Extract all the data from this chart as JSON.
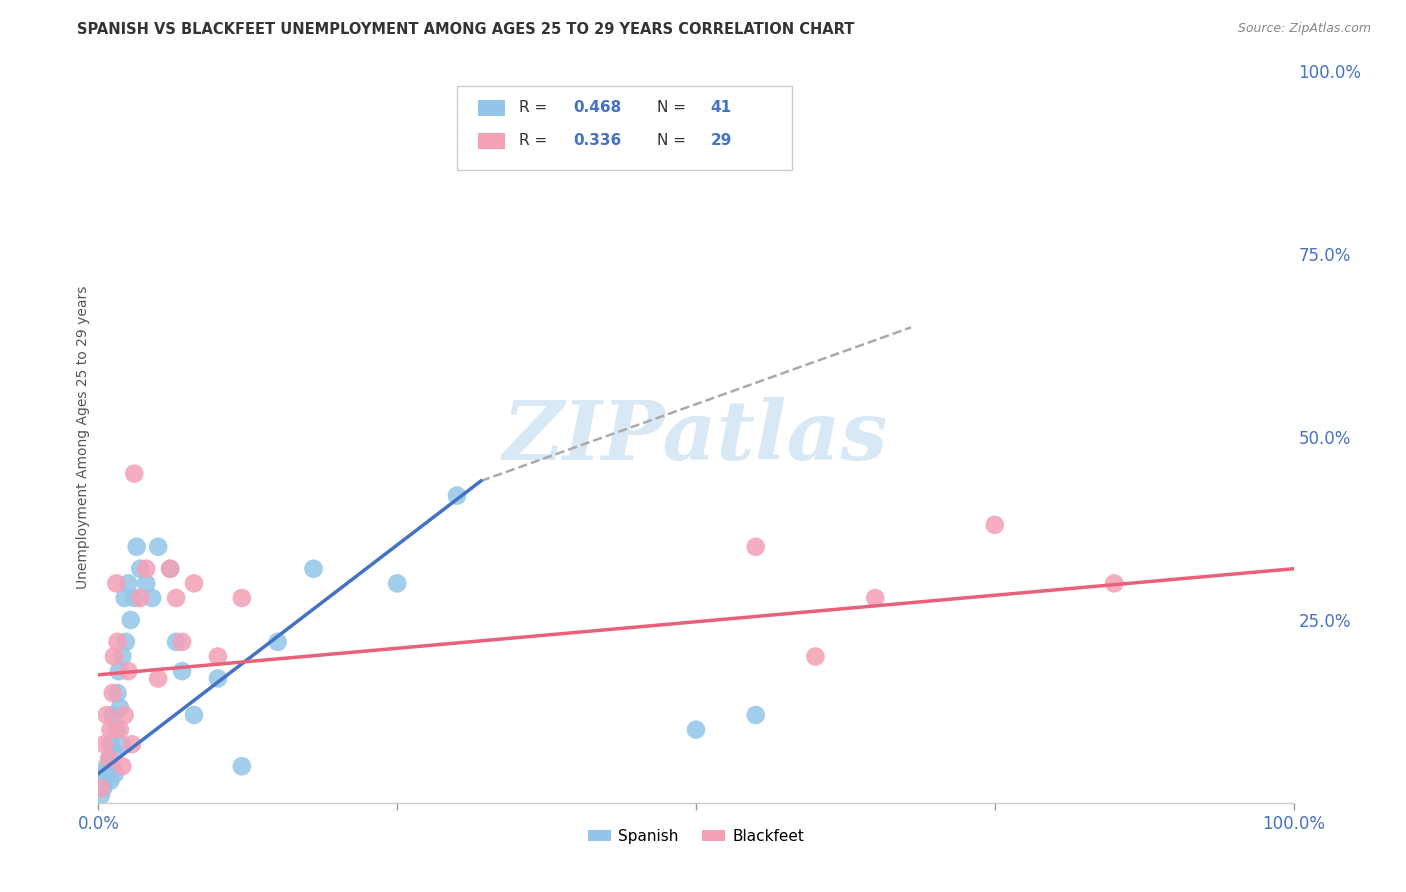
{
  "title": "SPANISH VS BLACKFEET UNEMPLOYMENT AMONG AGES 25 TO 29 YEARS CORRELATION CHART",
  "source": "Source: ZipAtlas.com",
  "ylabel": "Unemployment Among Ages 25 to 29 years",
  "xlim": [
    0,
    1.0
  ],
  "ylim": [
    0,
    1.0
  ],
  "ytick_positions": [
    0.25,
    0.5,
    0.75,
    1.0
  ],
  "ytick_labels": [
    "25.0%",
    "50.0%",
    "75.0%",
    "100.0%"
  ],
  "legend_R": [
    "0.468",
    "0.336"
  ],
  "legend_N": [
    "41",
    "29"
  ],
  "spanish_color": "#92C5E8",
  "blackfeet_color": "#F4A0B5",
  "spanish_line_color": "#4472C4",
  "blackfeet_line_color": "#E8607A",
  "dashed_color": "#AAAAAA",
  "tick_label_color": "#4472C4",
  "watermark_color": "#D8E8F5",
  "spanish_x": [
    0.002,
    0.004,
    0.005,
    0.006,
    0.007,
    0.008,
    0.009,
    0.01,
    0.01,
    0.011,
    0.012,
    0.013,
    0.014,
    0.015,
    0.016,
    0.017,
    0.018,
    0.019,
    0.02,
    0.022,
    0.023,
    0.025,
    0.027,
    0.03,
    0.032,
    0.035,
    0.04,
    0.045,
    0.05,
    0.06,
    0.065,
    0.07,
    0.08,
    0.1,
    0.12,
    0.15,
    0.18,
    0.25,
    0.3,
    0.5,
    0.55
  ],
  "spanish_y": [
    0.01,
    0.02,
    0.03,
    0.04,
    0.05,
    0.04,
    0.06,
    0.03,
    0.08,
    0.05,
    0.12,
    0.07,
    0.04,
    0.1,
    0.15,
    0.18,
    0.13,
    0.08,
    0.2,
    0.28,
    0.22,
    0.3,
    0.25,
    0.28,
    0.35,
    0.32,
    0.3,
    0.28,
    0.35,
    0.32,
    0.22,
    0.18,
    0.12,
    0.17,
    0.05,
    0.22,
    0.32,
    0.3,
    0.42,
    0.1,
    0.12
  ],
  "blackfeet_x": [
    0.002,
    0.005,
    0.007,
    0.009,
    0.01,
    0.012,
    0.013,
    0.015,
    0.016,
    0.018,
    0.02,
    0.022,
    0.025,
    0.028,
    0.03,
    0.035,
    0.04,
    0.05,
    0.06,
    0.065,
    0.07,
    0.08,
    0.1,
    0.12,
    0.55,
    0.6,
    0.65,
    0.75,
    0.85
  ],
  "blackfeet_y": [
    0.02,
    0.08,
    0.12,
    0.06,
    0.1,
    0.15,
    0.2,
    0.3,
    0.22,
    0.1,
    0.05,
    0.12,
    0.18,
    0.08,
    0.45,
    0.28,
    0.32,
    0.17,
    0.32,
    0.28,
    0.22,
    0.3,
    0.2,
    0.28,
    0.35,
    0.2,
    0.28,
    0.38,
    0.3
  ],
  "spanish_trend_x": [
    0.0,
    0.32
  ],
  "spanish_trend_y": [
    0.04,
    0.44
  ],
  "blackfeet_trend_x": [
    0.0,
    1.0
  ],
  "blackfeet_trend_y": [
    0.175,
    0.32
  ],
  "dashed_line_x": [
    0.32,
    0.68
  ],
  "dashed_line_y": [
    0.44,
    0.65
  ]
}
